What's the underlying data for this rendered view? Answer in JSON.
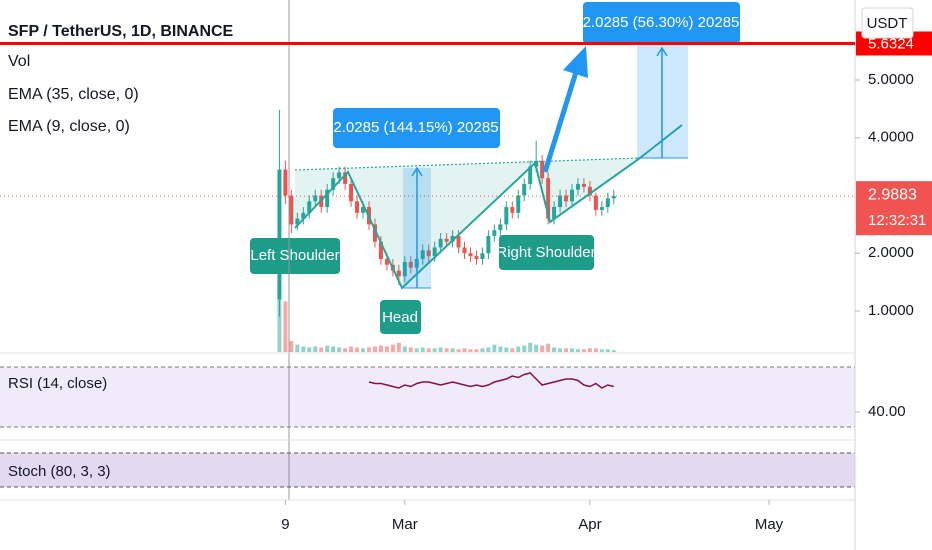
{
  "header": {
    "symbol": "SFP / TetherUS, 1D, BINANCE",
    "indicators": [
      "Vol",
      "EMA (35, close, 0)",
      "EMA (9, close, 0)"
    ]
  },
  "currency": "USDT",
  "chart_data": {
    "type": "candlestick",
    "x": [
      -21,
      -20,
      -19,
      -18,
      -17,
      -16,
      -15,
      -14,
      -13,
      -12,
      -11,
      -10,
      -9,
      -8,
      -7,
      -6,
      -5,
      -4,
      -3,
      -2,
      -1,
      0,
      1,
      2,
      3,
      4,
      5,
      6,
      7,
      8,
      9,
      10,
      11,
      12,
      13,
      14,
      15,
      16,
      17,
      18,
      19,
      20,
      21,
      22,
      23,
      24,
      25,
      26,
      27,
      28,
      29,
      30,
      31,
      32,
      33,
      34,
      35
    ],
    "open": [
      1.2,
      3.45,
      3.0,
      2.5,
      2.6,
      2.7,
      2.9,
      3.0,
      2.8,
      3.1,
      3.3,
      3.4,
      3.2,
      2.9,
      2.7,
      2.8,
      2.5,
      2.2,
      1.9,
      1.8,
      1.7,
      1.6,
      1.85,
      1.75,
      1.9,
      2.05,
      1.95,
      2.1,
      2.25,
      2.2,
      2.3,
      2.1,
      2.0,
      1.95,
      1.9,
      2.0,
      2.3,
      2.4,
      2.5,
      2.8,
      2.7,
      3.0,
      3.2,
      3.5,
      3.6,
      3.3,
      2.6,
      2.8,
      3.0,
      2.9,
      3.1,
      3.2,
      3.15,
      3.0,
      2.75,
      2.8,
      2.95
    ],
    "high": [
      4.48,
      3.6,
      3.1,
      2.7,
      2.8,
      3.0,
      3.1,
      3.1,
      3.2,
      3.4,
      3.5,
      3.5,
      3.3,
      3.0,
      2.9,
      2.9,
      2.6,
      2.3,
      2.0,
      1.9,
      1.8,
      1.95,
      1.95,
      2.0,
      2.15,
      2.15,
      2.2,
      2.35,
      2.35,
      2.4,
      2.4,
      2.2,
      2.1,
      2.05,
      2.1,
      2.4,
      2.5,
      2.6,
      2.9,
      2.9,
      3.1,
      3.3,
      3.6,
      3.95,
      3.7,
      3.4,
      2.9,
      3.1,
      3.1,
      3.2,
      3.3,
      3.3,
      3.25,
      3.05,
      2.9,
      3.05,
      3.1
    ],
    "low": [
      0.9,
      2.85,
      2.35,
      2.4,
      2.5,
      2.6,
      2.8,
      2.7,
      2.7,
      3.0,
      3.2,
      3.1,
      2.8,
      2.6,
      2.6,
      2.4,
      2.1,
      1.8,
      1.7,
      1.6,
      1.45,
      1.5,
      1.65,
      1.65,
      1.8,
      1.85,
      1.85,
      2.0,
      2.1,
      2.1,
      2.0,
      1.9,
      1.85,
      1.8,
      1.8,
      1.9,
      2.2,
      2.3,
      2.4,
      2.6,
      2.6,
      2.9,
      3.1,
      3.4,
      3.2,
      2.5,
      2.5,
      2.7,
      2.8,
      2.8,
      3.0,
      3.05,
      2.9,
      2.65,
      2.65,
      2.7,
      2.85
    ],
    "close": [
      3.45,
      3.0,
      2.5,
      2.6,
      2.7,
      2.9,
      3.0,
      2.8,
      3.1,
      3.3,
      3.4,
      3.2,
      2.9,
      2.7,
      2.8,
      2.5,
      2.2,
      1.9,
      1.8,
      1.7,
      1.6,
      1.85,
      1.75,
      1.9,
      2.05,
      1.95,
      2.1,
      2.25,
      2.2,
      2.3,
      2.1,
      2.0,
      1.95,
      1.9,
      2.0,
      2.3,
      2.4,
      2.5,
      2.8,
      2.7,
      3.0,
      3.2,
      3.5,
      3.6,
      3.3,
      2.6,
      2.8,
      3.0,
      2.9,
      3.1,
      3.2,
      3.15,
      3.0,
      2.75,
      2.8,
      2.95,
      2.99
    ],
    "volume": [
      100,
      55,
      12,
      8,
      6,
      5,
      6,
      5,
      7,
      6,
      5,
      4,
      6,
      5,
      4,
      5,
      6,
      7,
      6,
      8,
      10,
      6,
      5,
      4,
      5,
      4,
      4,
      5,
      4,
      4,
      3,
      4,
      3,
      3,
      4,
      5,
      8,
      6,
      5,
      4,
      6,
      7,
      10,
      8,
      7,
      9,
      5,
      4,
      4,
      4,
      3,
      3,
      4,
      4,
      3,
      3,
      2
    ],
    "up_color": "#26a69a",
    "down_color": "#ef5350",
    "xlim": [
      -67.8,
      75.4
    ],
    "xticks": [
      {
        "value": -20,
        "label": "9"
      },
      {
        "value": 0,
        "label": "Mar"
      },
      {
        "value": 31,
        "label": "Apr"
      },
      {
        "value": 61,
        "label": "May"
      }
    ],
    "ylim": [
      0.29,
      6.385
    ],
    "yticks": [
      {
        "value": 1,
        "label": "1.0000"
      },
      {
        "value": 2,
        "label": "2.0000"
      },
      {
        "value": 4,
        "label": "4.0000"
      },
      {
        "value": 5,
        "label": "5.0000"
      }
    ],
    "current_price": 2.9883,
    "countdown": "12:32:31",
    "level": 5.6324,
    "annotations": {
      "left_shoulder": "Left Shoulder",
      "head": "Head",
      "right_shoulder": "Right Shoulder",
      "measure_1": "2.0285 (144.15%) 20285",
      "measure_2": "2.0285 (56.30%) 20285"
    }
  },
  "rsi": {
    "type": "line",
    "title": "RSI (14, close)",
    "color": "#880e4f",
    "values": [
      null,
      null,
      null,
      null,
      null,
      null,
      null,
      null,
      null,
      null,
      null,
      null,
      null,
      null,
      null,
      60,
      59,
      59,
      58,
      57,
      56,
      58,
      57,
      59,
      60,
      60,
      59,
      58,
      59,
      60,
      59,
      58,
      57,
      58,
      57,
      58,
      60,
      61,
      62,
      64,
      63,
      65,
      66,
      62,
      58,
      59,
      60,
      61,
      62,
      62,
      61,
      58,
      57,
      59,
      56,
      58,
      57
    ],
    "ylim": [
      21.3,
      78
    ],
    "yticks": [
      {
        "value": 40,
        "label": "40.00"
      }
    ],
    "bands": [
      30,
      70
    ]
  },
  "stoch": {
    "title": "Stoch (80, 3, 3)"
  }
}
